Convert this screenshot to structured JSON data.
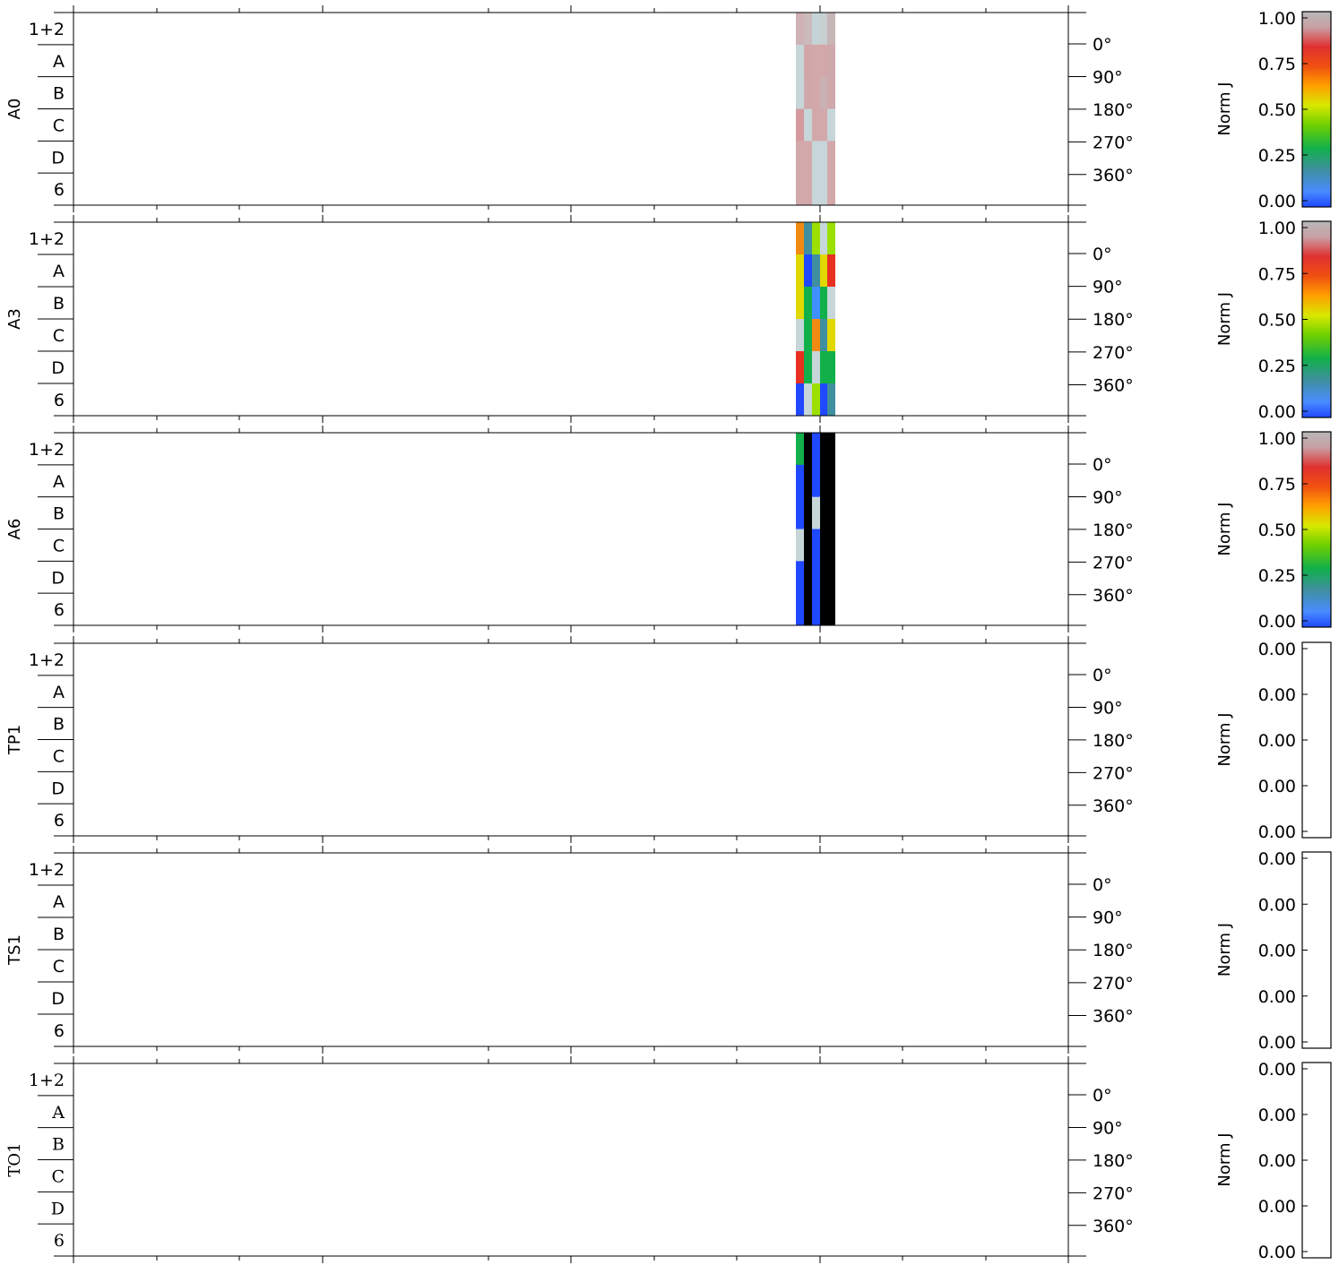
{
  "chart_data": {
    "type": "heatmap",
    "colorbar_label": "Norm J",
    "row_labels": [
      "1+2",
      "A",
      "B",
      "C",
      "D",
      "6"
    ],
    "angle_labels": [
      "0°",
      "90°",
      "180°",
      "270°",
      "360°"
    ],
    "colormap": [
      "#1f48ff",
      "#3f8fa0",
      "#12b04a",
      "#9be000",
      "#ffa000",
      "#e83020",
      "#b8b8b8"
    ],
    "panels": [
      {
        "name": "A0",
        "colorbar_ticks": [
          "1.00",
          "0.75",
          "0.50",
          "0.25",
          "0.00"
        ],
        "cells": [
          [
            "#cfb2b5",
            "#cbb9bb",
            "#c4d3d6",
            "#c7cfd1",
            "#c7b6b8"
          ],
          [
            "#c6d6d9",
            "#d1a6a9",
            "#d3a8ab",
            "#d3a8ab",
            "#cfa8ab"
          ],
          [
            "#c6d6d9",
            "#d0a8ab",
            "#d3a8ab",
            "#c8b0b3",
            "#cfa8ab"
          ],
          [
            "#d49a9e",
            "#c6d6d9",
            "#d3a8ab",
            "#d3a8ab",
            "#c6d6d9"
          ],
          [
            "#d3a8ab",
            "#d3a8ab",
            "#c6d6d9",
            "#c6d6d9",
            "#d3a8ab"
          ],
          [
            "#d3a8ab",
            "#d3a8ab",
            "#c6d6d9",
            "#c6d6d9",
            "#d3a8ab"
          ]
        ]
      },
      {
        "name": "A3",
        "colorbar_ticks": [
          "1.00",
          "0.75",
          "0.50",
          "0.25",
          "0.00"
        ],
        "cells": [
          [
            "#f08a10",
            "#3f8fa0",
            "#9be000",
            "#c6d6d9",
            "#9be000"
          ],
          [
            "#e0d800",
            "#1f48ff",
            "#3f8fa0",
            "#e0d800",
            "#e83020"
          ],
          [
            "#e0d800",
            "#12b04a",
            "#3f8fff",
            "#12b04a",
            "#c6d6d9"
          ],
          [
            "#c6d6d9",
            "#12b04a",
            "#f08a10",
            "#3f8fa0",
            "#e0d800"
          ],
          [
            "#e83020",
            "#12b04a",
            "#c6d6d9",
            "#12b04a",
            "#12b04a"
          ],
          [
            "#1f48ff",
            "#c6d6d9",
            "#9be000",
            "#1f48ff",
            "#3f8fa0"
          ]
        ]
      },
      {
        "name": "A6",
        "colorbar_ticks": [
          "1.00",
          "0.75",
          "0.50",
          "0.25",
          "0.00"
        ],
        "cells": [
          [
            "#12b04a",
            "#000000",
            "#1f48ff",
            "#000000",
            "#000000"
          ],
          [
            "#1f48ff",
            "#000000",
            "#1f48ff",
            "#000000",
            "#000000"
          ],
          [
            "#1f48ff",
            "#000000",
            "#c6d6d9",
            "#000000",
            "#000000"
          ],
          [
            "#c6d6d9",
            "#000000",
            "#1f48ff",
            "#000000",
            "#000000"
          ],
          [
            "#1f48ff",
            "#000000",
            "#1f48ff",
            "#000000",
            "#000000"
          ],
          [
            "#1f48ff",
            "#000000",
            "#1f48ff",
            "#000000",
            "#000000"
          ]
        ]
      },
      {
        "name": "TP1",
        "colorbar_ticks": [
          "0.00",
          "0.00",
          "0.00",
          "0.00",
          "0.00"
        ],
        "cells": []
      },
      {
        "name": "TS1",
        "colorbar_ticks": [
          "0.00",
          "0.00",
          "0.00",
          "0.00",
          "0.00"
        ],
        "cells": []
      },
      {
        "name": "TO1",
        "colorbar_ticks": [
          "0.00",
          "0.00",
          "0.00",
          "0.00",
          "0.00"
        ],
        "cells": []
      }
    ]
  }
}
